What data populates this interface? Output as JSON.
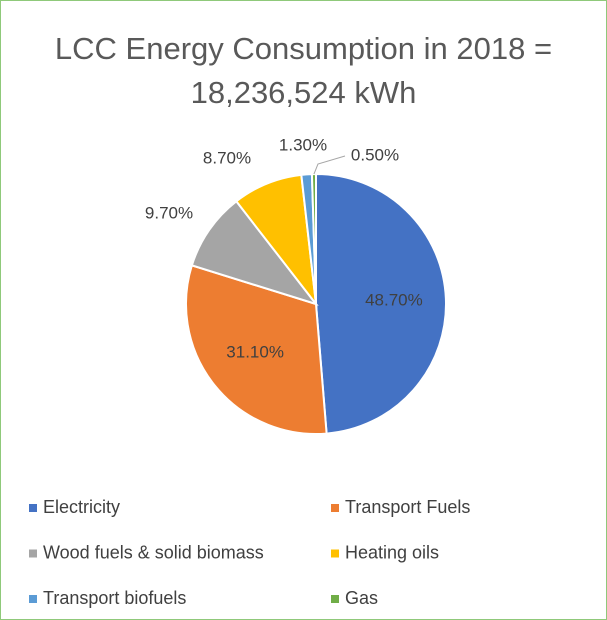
{
  "chart_data": {
    "type": "pie",
    "title": "LCC Energy Consumption in 2018 = 18,236,524 kWh",
    "categories": [
      "Electricity",
      "Transport Fuels",
      "Wood fuels & solid biomass",
      "Heating oils",
      "Transport biofuels",
      "Gas"
    ],
    "values": [
      48.7,
      31.1,
      9.7,
      8.7,
      1.3,
      0.5
    ],
    "value_labels": [
      "48.70%",
      "31.10%",
      "9.70%",
      "8.70%",
      "1.30%",
      "0.50%"
    ],
    "colors": [
      "#4472c4",
      "#ed7d31",
      "#a5a5a5",
      "#ffc000",
      "#5b9bd5",
      "#70ad47"
    ],
    "legend": "bottom"
  }
}
